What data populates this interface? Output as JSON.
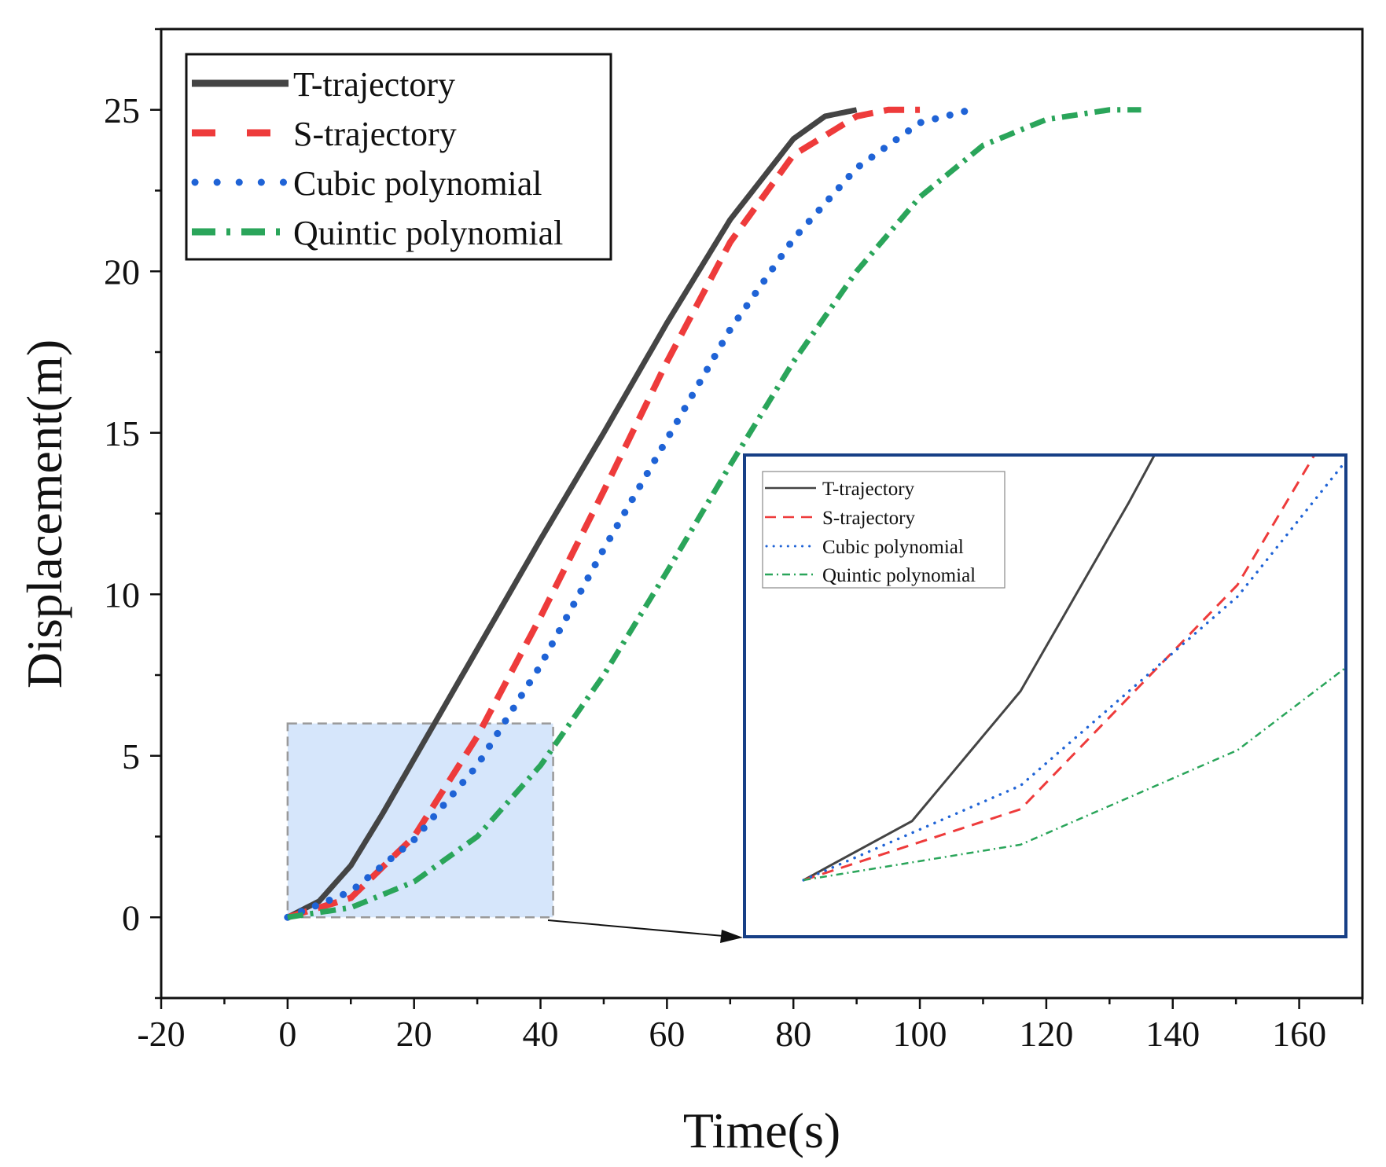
{
  "chart_data": {
    "type": "line",
    "title": "",
    "xlabel": "Time(s)",
    "ylabel": "Displacement(m)",
    "xlim": [
      -20,
      170
    ],
    "ylim": [
      -2.5,
      27.5
    ],
    "xticks": [
      "-20",
      "0",
      "20",
      "40",
      "60",
      "80",
      "100",
      "120",
      "140",
      "160"
    ],
    "yticks": [
      "0",
      "5",
      "10",
      "15",
      "20",
      "25"
    ],
    "legend": "top-left",
    "series": [
      {
        "name": "T-trajectory",
        "color": "#444444",
        "style": "solid",
        "t_end": 90,
        "x": [
          0,
          5,
          10,
          15,
          20,
          30,
          40,
          50,
          60,
          70,
          80,
          85,
          90
        ],
        "y": [
          0,
          0.5,
          1.6,
          3.2,
          4.9,
          8.3,
          11.7,
          15.0,
          18.4,
          21.6,
          24.1,
          24.8,
          25.0
        ]
      },
      {
        "name": "S-trajectory",
        "color": "#ee3b3b",
        "style": "dashed",
        "t_end": 100,
        "x": [
          0,
          10,
          20,
          30,
          40,
          50,
          60,
          70,
          80,
          90,
          95,
          100
        ],
        "y": [
          0,
          0.6,
          2.5,
          5.6,
          9.3,
          13.2,
          17.2,
          20.9,
          23.6,
          24.8,
          25.0,
          25.0
        ]
      },
      {
        "name": "Cubic polynomial",
        "color": "#1f63d6",
        "style": "dotted",
        "t_end": 108,
        "x": [
          0,
          10,
          20,
          30,
          40,
          50,
          60,
          70,
          80,
          90,
          100,
          108
        ],
        "y": [
          0,
          0.8,
          2.4,
          4.7,
          7.8,
          11.4,
          14.8,
          18.2,
          21.0,
          23.2,
          24.6,
          25.0
        ]
      },
      {
        "name": "Quintic polynomial",
        "color": "#2aa55a",
        "style": "dash-dot",
        "t_end": 135,
        "x": [
          0,
          10,
          20,
          30,
          40,
          50,
          60,
          70,
          80,
          90,
          100,
          110,
          120,
          130,
          135
        ],
        "y": [
          0,
          0.3,
          1.1,
          2.5,
          4.7,
          7.5,
          10.7,
          14.0,
          17.2,
          20.0,
          22.3,
          23.9,
          24.7,
          25.0,
          25.0
        ]
      }
    ],
    "zoom_region": {
      "x": [
        0,
        42
      ],
      "y": [
        0,
        6
      ]
    },
    "inset": {
      "legend": "top-left",
      "series_names": [
        "T-trajectory",
        "S-trajectory",
        "Cubic polynomial",
        "Quintic polynomial"
      ]
    }
  }
}
